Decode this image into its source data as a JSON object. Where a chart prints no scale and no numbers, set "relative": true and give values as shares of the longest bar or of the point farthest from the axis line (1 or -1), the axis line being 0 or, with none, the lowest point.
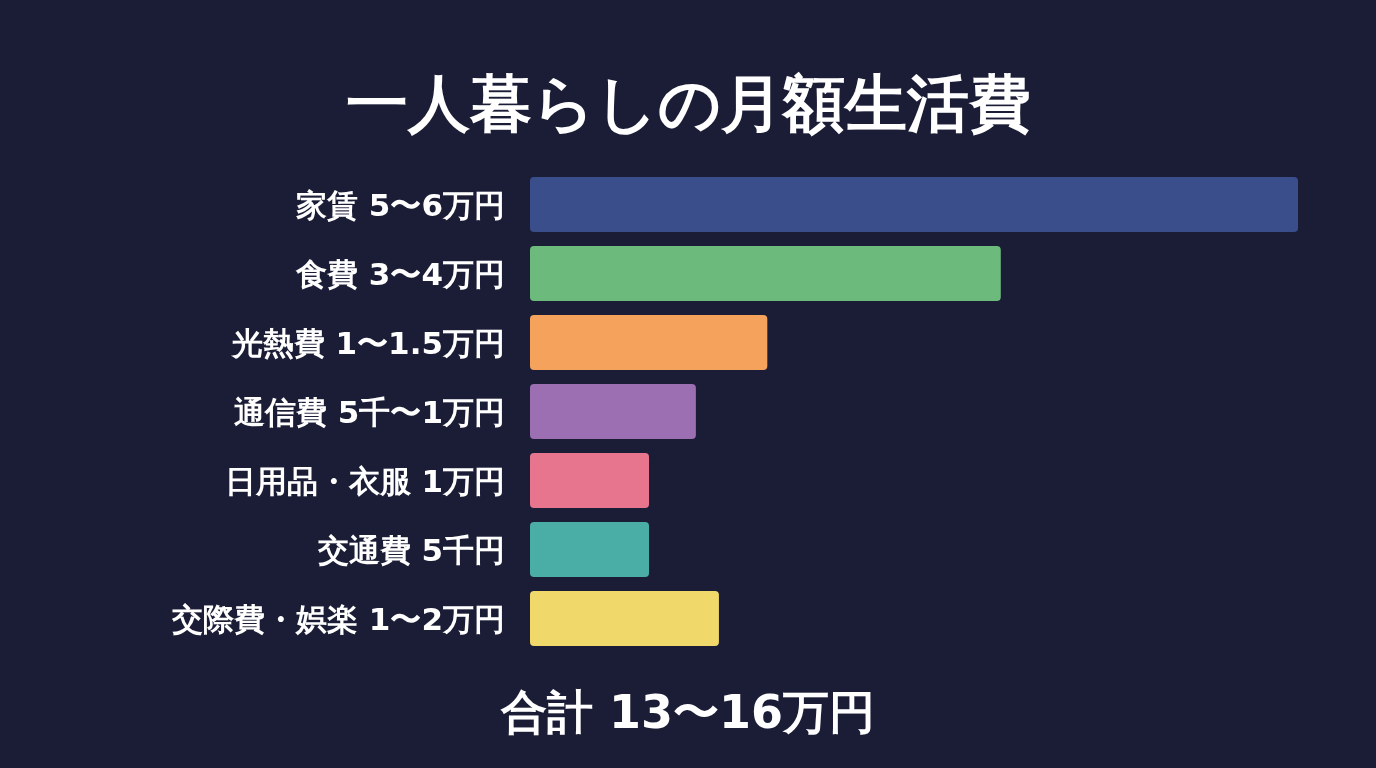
{
  "chart_data": {
    "type": "bar",
    "orientation": "horizontal",
    "relative": true,
    "title": "一人暮らしの月額生活費",
    "categories": [
      "家賃 5〜6万円",
      "食費 3〜4万円",
      "光熱費 1〜1.5万円",
      "通信費 5千〜1万円",
      "日用品・衣服 1万円",
      "交通費 5千円",
      "交際費・娯楽 1〜2万円"
    ],
    "values": [
      1,
      0.613,
      0.309,
      0.216,
      0.155,
      0.155,
      0.246
    ],
    "colors": [
      "#3a4e8c",
      "#6dbb7c",
      "#f4a25c",
      "#9b6fb2",
      "#e8758e",
      "#4aada6",
      "#f0d96a"
    ],
    "annotations": [
      "合計 13〜16万円"
    ]
  }
}
